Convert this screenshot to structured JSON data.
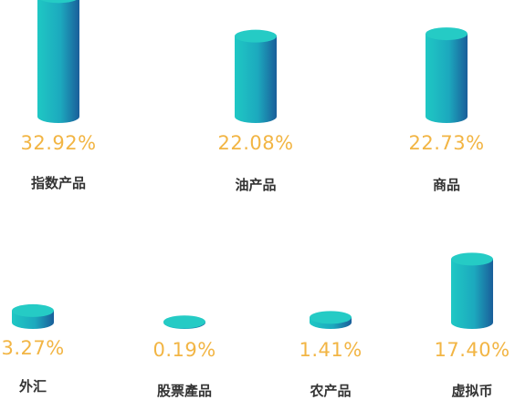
{
  "chart_data": {
    "type": "bar",
    "title": "",
    "xlabel": "",
    "ylabel": "",
    "categories": [
      "指数产品",
      "油产品",
      "商品",
      "外汇",
      "股票產品",
      "农产品",
      "虚拟币"
    ],
    "values": [
      32.92,
      22.08,
      22.73,
      3.27,
      0.19,
      1.41,
      17.4
    ],
    "value_labels": [
      "32.92%",
      "22.08%",
      "22.73%",
      "3.27%",
      "0.19%",
      "1.41%",
      "17.40%"
    ],
    "unit": "%",
    "grid": false,
    "legend": "none"
  },
  "colors": {
    "cylinder_left": "#1FC8C4",
    "cylinder_right": "#1A5E9A",
    "cylinder_top": "#25CBC5",
    "value_label": "#F2B544",
    "category_label": "#333333"
  }
}
